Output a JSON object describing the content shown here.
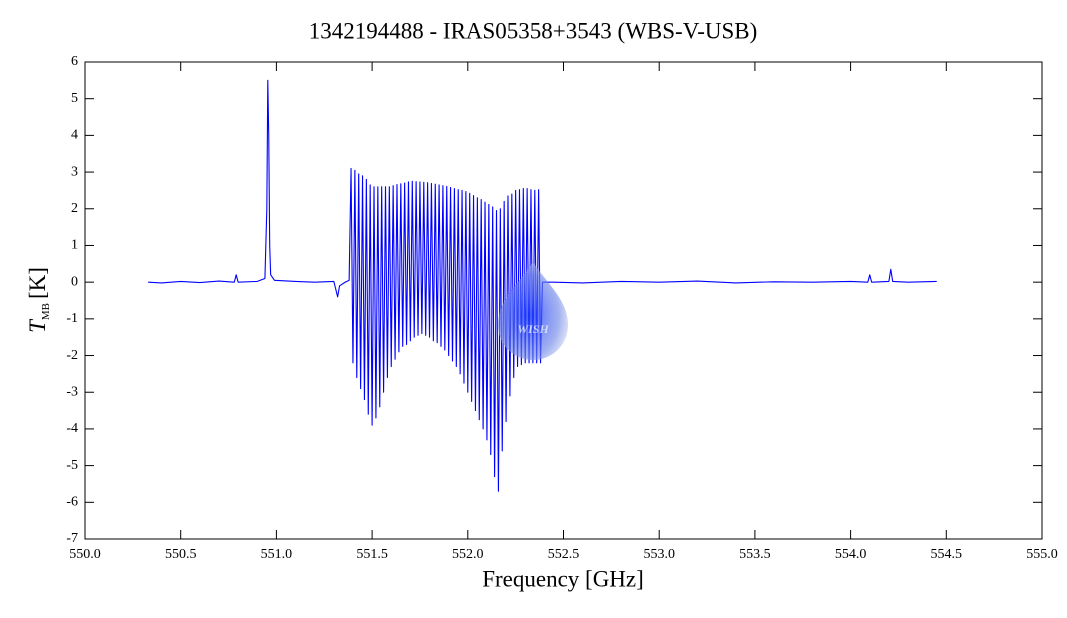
{
  "chart_data": {
    "type": "line",
    "title": "1342194488 - IRAS05358+3543 (WBS-V-USB)",
    "x_label": "Frequency [GHz]",
    "y_label": {
      "symbol": "T",
      "subscript": "MB",
      "unit": "[K]"
    },
    "watermark_text": "WISH",
    "xlim": [
      550,
      555
    ],
    "ylim": [
      -7,
      6
    ],
    "xticks": [
      {
        "value": 550,
        "label": "550.0"
      },
      {
        "value": 550.5,
        "label": "550.5"
      },
      {
        "value": 551,
        "label": "551.0"
      },
      {
        "value": 551.5,
        "label": "551.5"
      },
      {
        "value": 552,
        "label": "552.0"
      },
      {
        "value": 552.5,
        "label": "552.5"
      },
      {
        "value": 553,
        "label": "553.0"
      },
      {
        "value": 553.5,
        "label": "553.5"
      },
      {
        "value": 554,
        "label": "554.0"
      },
      {
        "value": 554.5,
        "label": "554.5"
      },
      {
        "value": 555,
        "label": "555.0"
      }
    ],
    "yticks": [
      -7,
      -6,
      -5,
      -4,
      -3,
      -2,
      -1,
      0,
      1,
      2,
      3,
      4,
      5,
      6
    ],
    "grid": false,
    "series": [
      {
        "color": "#0000ff",
        "x": [
          550.33,
          550.4,
          550.5,
          550.6,
          550.7,
          550.78,
          550.79,
          550.8,
          550.9,
          550.94,
          550.95,
          550.955,
          550.96,
          550.965,
          550.97,
          550.99,
          551.1,
          551.2,
          551.3,
          551.32,
          551.33,
          551.36,
          551.38,
          551.39,
          551.4,
          551.41,
          551.42,
          551.43,
          551.44,
          551.45,
          551.46,
          551.47,
          551.48,
          551.49,
          551.5,
          551.51,
          551.52,
          551.53,
          551.54,
          551.55,
          551.56,
          551.57,
          551.58,
          551.59,
          551.6,
          551.61,
          551.62,
          551.63,
          551.64,
          551.65,
          551.66,
          551.67,
          551.68,
          551.69,
          551.7,
          551.71,
          551.72,
          551.73,
          551.74,
          551.75,
          551.76,
          551.77,
          551.78,
          551.79,
          551.8,
          551.81,
          551.82,
          551.83,
          551.84,
          551.85,
          551.86,
          551.87,
          551.88,
          551.89,
          551.9,
          551.91,
          551.92,
          551.93,
          551.94,
          551.95,
          551.96,
          551.97,
          551.98,
          551.99,
          552.0,
          552.01,
          552.02,
          552.03,
          552.04,
          552.05,
          552.06,
          552.07,
          552.08,
          552.09,
          552.1,
          552.11,
          552.12,
          552.13,
          552.14,
          552.15,
          552.16,
          552.17,
          552.18,
          552.19,
          552.2,
          552.21,
          552.22,
          552.23,
          552.24,
          552.25,
          552.26,
          552.27,
          552.28,
          552.29,
          552.3,
          552.31,
          552.32,
          552.33,
          552.34,
          552.35,
          552.36,
          552.37,
          552.38,
          552.39,
          552.45,
          552.6,
          552.8,
          553.0,
          553.2,
          553.4,
          553.6,
          553.8,
          554.0,
          554.09,
          554.1,
          554.11,
          554.2,
          554.21,
          554.22,
          554.3,
          554.45
        ],
        "values": [
          0.0,
          -0.02,
          0.02,
          -0.01,
          0.03,
          0.0,
          0.2,
          0.0,
          0.02,
          0.1,
          2.0,
          5.5,
          4.0,
          1.0,
          0.2,
          0.05,
          0.02,
          0.0,
          0.02,
          -0.4,
          -0.1,
          0.0,
          0.05,
          3.1,
          -2.2,
          3.05,
          -2.6,
          2.95,
          -2.9,
          2.9,
          -3.2,
          2.8,
          -3.6,
          2.65,
          -3.9,
          2.6,
          -3.7,
          2.6,
          -3.4,
          2.6,
          -3.0,
          2.6,
          -2.6,
          2.6,
          -2.3,
          2.63,
          -2.1,
          2.66,
          -1.9,
          2.68,
          -1.75,
          2.7,
          -1.7,
          2.73,
          -1.6,
          2.75,
          -1.5,
          2.74,
          -1.45,
          2.73,
          -1.4,
          2.72,
          -1.45,
          2.71,
          -1.5,
          2.69,
          -1.6,
          2.67,
          -1.65,
          2.65,
          -1.75,
          2.63,
          -1.85,
          2.61,
          -2.0,
          2.58,
          -2.15,
          2.55,
          -2.3,
          2.52,
          -2.5,
          2.5,
          -2.75,
          2.47,
          -3.0,
          2.42,
          -3.25,
          2.36,
          -3.5,
          2.3,
          -3.75,
          2.25,
          -4.0,
          2.18,
          -4.3,
          2.12,
          -4.7,
          2.05,
          -5.3,
          1.95,
          -5.7,
          2.0,
          -4.6,
          2.2,
          -3.8,
          2.35,
          -3.1,
          2.4,
          -2.6,
          2.5,
          -2.3,
          2.52,
          -2.25,
          2.55,
          -2.2,
          2.55,
          -2.2,
          2.52,
          -2.2,
          2.5,
          -2.2,
          2.52,
          -2.2,
          0.0,
          0.0,
          -0.02,
          0.02,
          0.0,
          0.03,
          -0.02,
          0.01,
          0.0,
          0.02,
          0.0,
          0.2,
          0.0,
          0.02,
          0.35,
          0.02,
          0.0,
          0.02
        ]
      }
    ]
  }
}
